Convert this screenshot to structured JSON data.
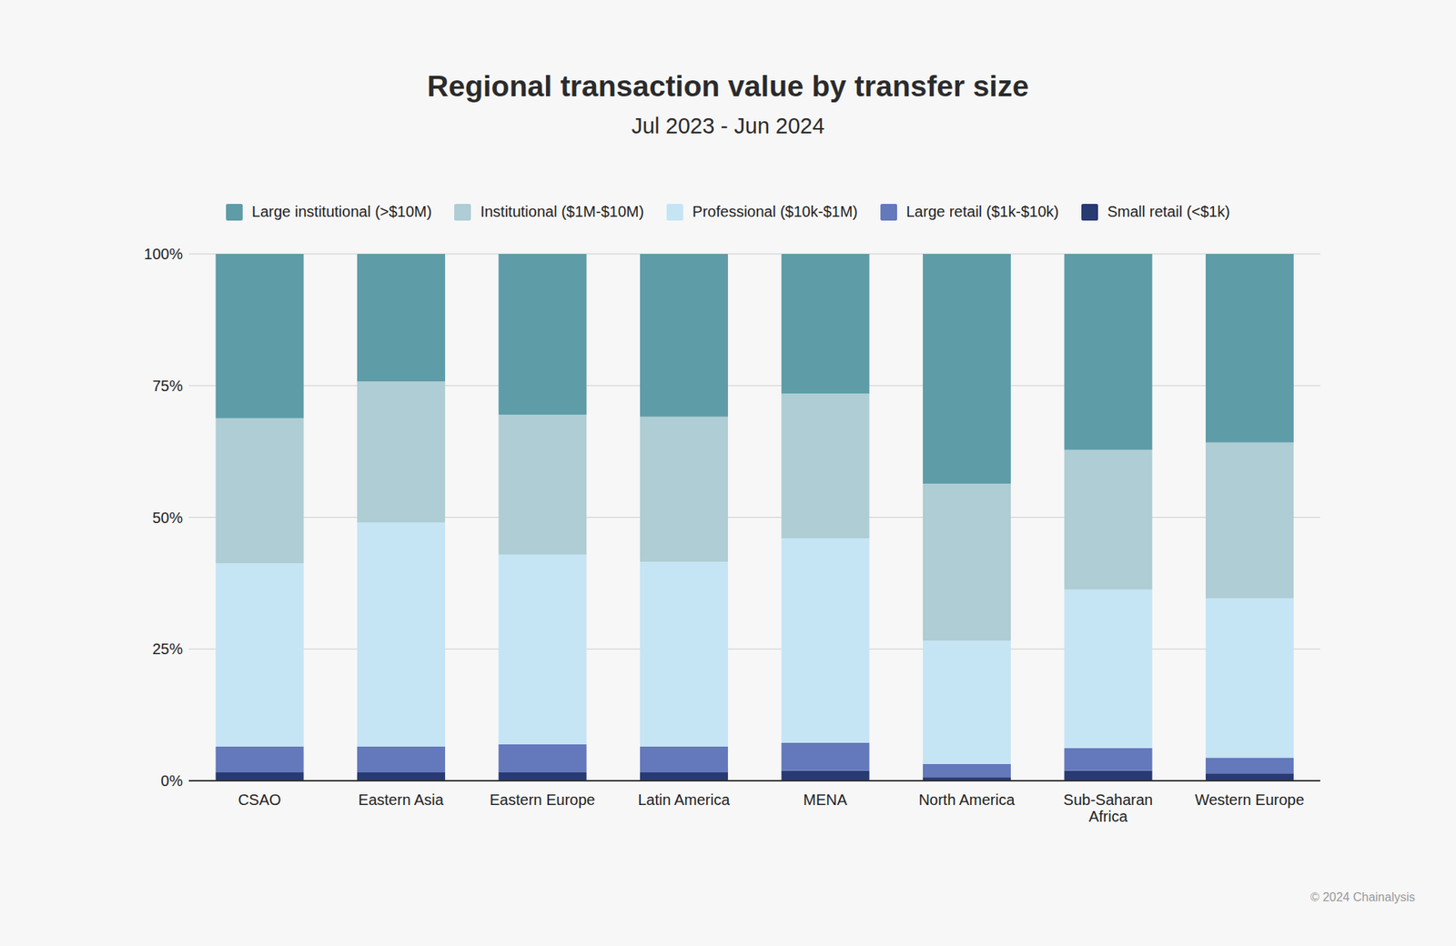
{
  "chart_data": {
    "type": "bar",
    "title": "Regional transaction value by transfer size",
    "subtitle": "Jul 2023 - Jun 2024",
    "source": "© 2024 Chainalysis",
    "stacked": true,
    "grid": true,
    "legend": "top",
    "categories": [
      "CSAO",
      "Eastern Asia",
      "Eastern Europe",
      "Latin America",
      "MENA",
      "North America",
      "Sub-Saharan Africa",
      "Western Europe"
    ],
    "series": [
      {
        "name": "Large institutional (>$10M)",
        "color": "#5e9ca8",
        "values": [
          31.2,
          24.2,
          30.5,
          30.9,
          26.5,
          43.6,
          37.2,
          35.8
        ]
      },
      {
        "name": "Institutional ($1M-$10M)",
        "color": "#aecdd4",
        "values": [
          27.5,
          26.8,
          26.6,
          27.5,
          27.5,
          29.8,
          26.5,
          29.6
        ]
      },
      {
        "name": "Professional ($10k-$1M)",
        "color": "#c5e5f5",
        "values": [
          34.8,
          42.5,
          36.0,
          35.1,
          38.8,
          23.4,
          30.1,
          30.2
        ]
      },
      {
        "name": "Large retail ($1k-$10k)",
        "color": "#6478bc",
        "values": [
          4.9,
          4.9,
          5.3,
          4.9,
          5.3,
          2.5,
          4.3,
          3.0
        ]
      },
      {
        "name": "Small retail (<$1k)",
        "color": "#283a72",
        "values": [
          1.6,
          1.6,
          1.6,
          1.6,
          1.9,
          0.7,
          1.9,
          1.4
        ]
      }
    ],
    "ylim": [
      0,
      100
    ],
    "yticks": [
      {
        "value": 0,
        "label": "0%"
      },
      {
        "value": 25,
        "label": "25%"
      },
      {
        "value": 50,
        "label": "50%"
      },
      {
        "value": 75,
        "label": "75%"
      },
      {
        "value": 100,
        "label": "100%"
      }
    ]
  }
}
